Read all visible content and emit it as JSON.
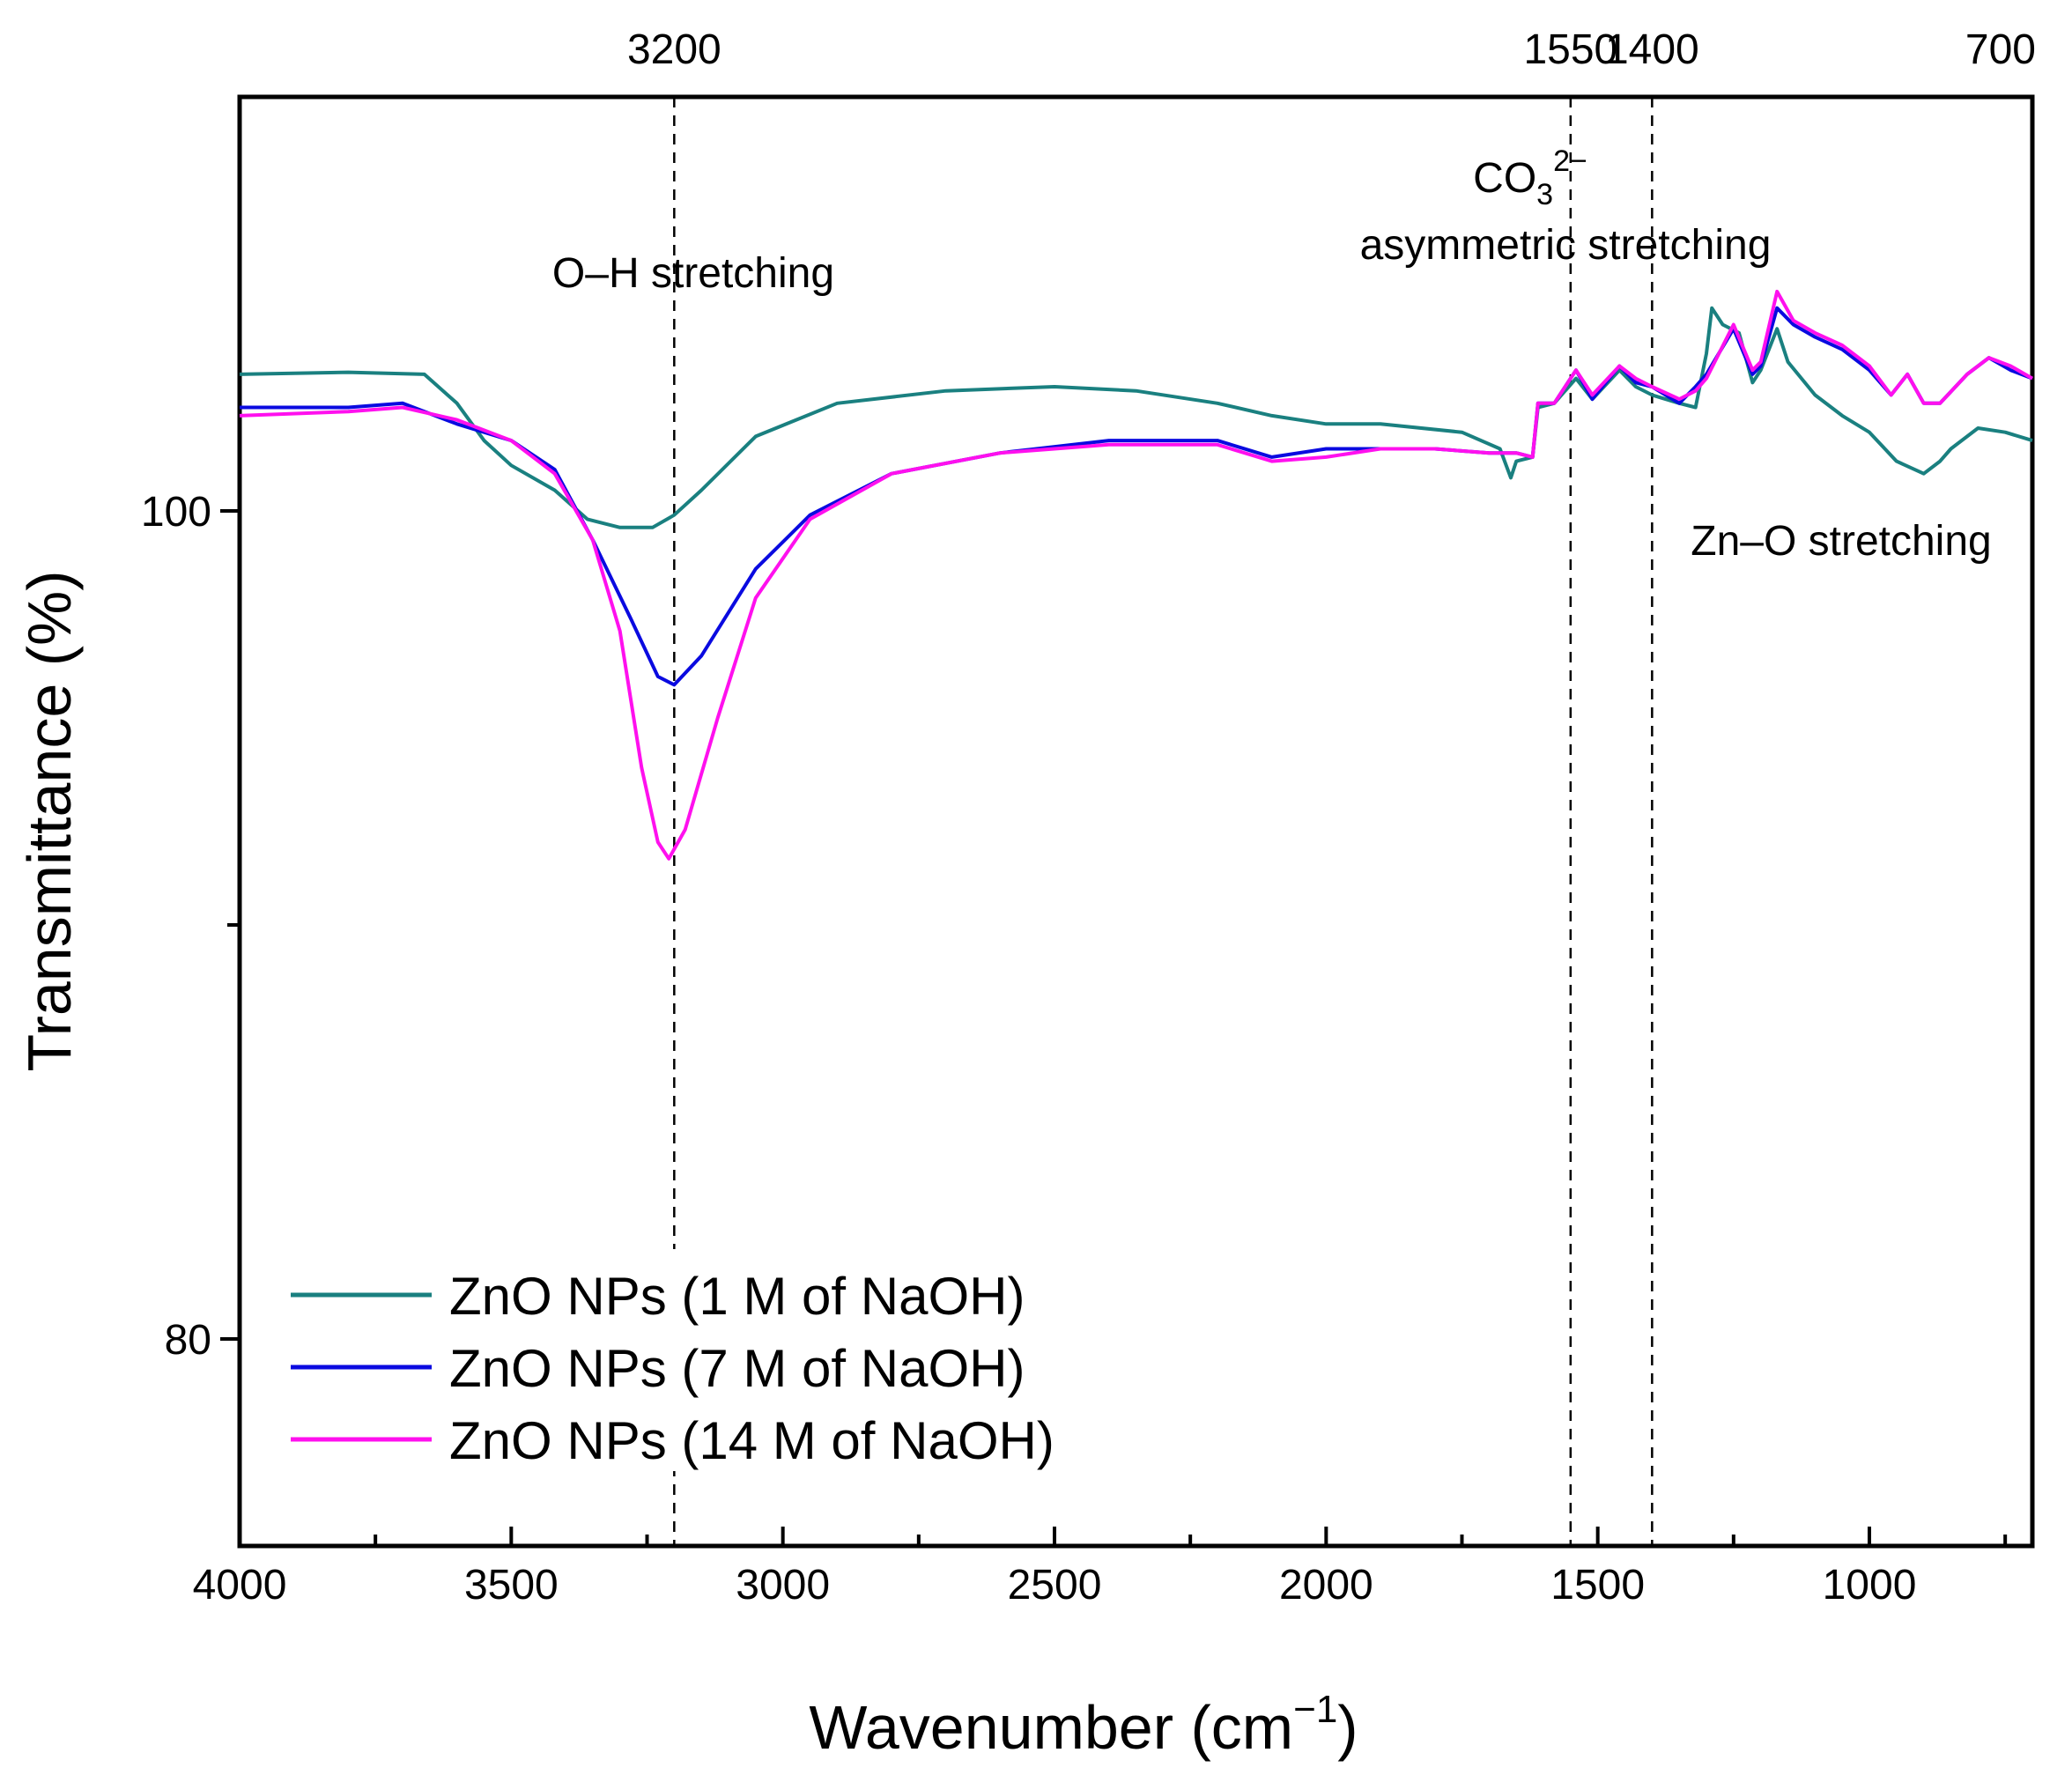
{
  "chart_data": {
    "type": "line",
    "title": "",
    "xlabel": "Wavenumber (cm",
    "xlabel_sup": "−1",
    "xlabel_end": ")",
    "ylabel": "Transmittance (%)",
    "xlim": [
      4000,
      700
    ],
    "ylim": [
      75,
      110
    ],
    "x_ticks": [
      4000,
      3500,
      3000,
      2500,
      2000,
      1500,
      1000
    ],
    "x_tick_labels": [
      "4000",
      "3500",
      "3000",
      "2500",
      "2000",
      "1500",
      "1000"
    ],
    "y_ticks": [
      80,
      100
    ],
    "y_tick_labels": [
      "80",
      "100"
    ],
    "reference_lines": [
      {
        "x": 3200,
        "label": "3200"
      },
      {
        "x": 1550,
        "label": "1550"
      },
      {
        "x": 1400,
        "label": "1400"
      },
      {
        "x": 700,
        "label": "700"
      }
    ],
    "annotations": [
      {
        "text": "O–H stretching"
      },
      {
        "text_line1_base": "CO",
        "text_line1_sub": "3",
        "text_line1_sup": "2−",
        "text_line2": "asymmetric stretching"
      },
      {
        "text": "Zn–O stretching"
      }
    ],
    "legend_position": "bottom-left",
    "series": [
      {
        "name": "ZnO NPs (1 M of NaOH)",
        "color": "#1a8080",
        "points": [
          [
            4000,
            103.3
          ],
          [
            3800,
            103.35
          ],
          [
            3660,
            103.3
          ],
          [
            3600,
            102.6
          ],
          [
            3550,
            101.7
          ],
          [
            3500,
            101.1
          ],
          [
            3420,
            100.5
          ],
          [
            3360,
            99.8
          ],
          [
            3300,
            99.6
          ],
          [
            3240,
            99.6
          ],
          [
            3200,
            99.9
          ],
          [
            3150,
            100.5
          ],
          [
            3050,
            101.8
          ],
          [
            2900,
            102.6
          ],
          [
            2700,
            102.9
          ],
          [
            2500,
            103.0
          ],
          [
            2350,
            102.9
          ],
          [
            2200,
            102.6
          ],
          [
            2100,
            102.3
          ],
          [
            2000,
            102.1
          ],
          [
            1900,
            102.1
          ],
          [
            1750,
            101.9
          ],
          [
            1680,
            101.5
          ],
          [
            1660,
            100.8
          ],
          [
            1650,
            101.2
          ],
          [
            1620,
            101.3
          ],
          [
            1610,
            102.5
          ],
          [
            1580,
            102.6
          ],
          [
            1540,
            103.2
          ],
          [
            1510,
            102.7
          ],
          [
            1460,
            103.4
          ],
          [
            1430,
            103.0
          ],
          [
            1400,
            102.8
          ],
          [
            1350,
            102.6
          ],
          [
            1320,
            102.5
          ],
          [
            1300,
            103.8
          ],
          [
            1290,
            104.9
          ],
          [
            1270,
            104.5
          ],
          [
            1240,
            104.3
          ],
          [
            1215,
            103.1
          ],
          [
            1200,
            103.4
          ],
          [
            1170,
            104.4
          ],
          [
            1150,
            103.6
          ],
          [
            1100,
            102.8
          ],
          [
            1050,
            102.3
          ],
          [
            1000,
            101.9
          ],
          [
            950,
            101.2
          ],
          [
            900,
            100.9
          ],
          [
            870,
            101.2
          ],
          [
            850,
            101.5
          ],
          [
            800,
            102.0
          ],
          [
            750,
            101.9
          ],
          [
            700,
            101.7
          ]
        ]
      },
      {
        "name": "ZnO NPs (7 M of NaOH)",
        "color": "#0a0ae0",
        "points": [
          [
            4000,
            102.5
          ],
          [
            3800,
            102.5
          ],
          [
            3700,
            102.6
          ],
          [
            3600,
            102.1
          ],
          [
            3500,
            101.7
          ],
          [
            3420,
            101.0
          ],
          [
            3350,
            99.3
          ],
          [
            3280,
            97.4
          ],
          [
            3230,
            96.0
          ],
          [
            3200,
            95.8
          ],
          [
            3150,
            96.5
          ],
          [
            3050,
            98.6
          ],
          [
            2950,
            99.9
          ],
          [
            2800,
            100.9
          ],
          [
            2600,
            101.4
          ],
          [
            2400,
            101.7
          ],
          [
            2200,
            101.7
          ],
          [
            2100,
            101.3
          ],
          [
            2000,
            101.5
          ],
          [
            1900,
            101.5
          ],
          [
            1800,
            101.5
          ],
          [
            1700,
            101.4
          ],
          [
            1650,
            101.4
          ],
          [
            1620,
            101.3
          ],
          [
            1610,
            102.6
          ],
          [
            1580,
            102.6
          ],
          [
            1540,
            103.4
          ],
          [
            1510,
            102.7
          ],
          [
            1460,
            103.5
          ],
          [
            1430,
            103.1
          ],
          [
            1400,
            103.0
          ],
          [
            1350,
            102.6
          ],
          [
            1320,
            103.0
          ],
          [
            1300,
            103.3
          ],
          [
            1250,
            104.4
          ],
          [
            1215,
            103.3
          ],
          [
            1200,
            103.5
          ],
          [
            1170,
            104.9
          ],
          [
            1140,
            104.5
          ],
          [
            1100,
            104.2
          ],
          [
            1050,
            103.9
          ],
          [
            1000,
            103.4
          ],
          [
            960,
            102.8
          ],
          [
            930,
            103.3
          ],
          [
            900,
            102.6
          ],
          [
            870,
            102.6
          ],
          [
            820,
            103.3
          ],
          [
            780,
            103.7
          ],
          [
            740,
            103.4
          ],
          [
            700,
            103.2
          ]
        ]
      },
      {
        "name": "ZnO NPs (14 M of NaOH)",
        "color": "#ff10ee",
        "points": [
          [
            4000,
            102.3
          ],
          [
            3800,
            102.4
          ],
          [
            3700,
            102.5
          ],
          [
            3600,
            102.2
          ],
          [
            3500,
            101.7
          ],
          [
            3420,
            100.9
          ],
          [
            3350,
            99.3
          ],
          [
            3300,
            97.1
          ],
          [
            3260,
            93.8
          ],
          [
            3230,
            92.0
          ],
          [
            3210,
            91.6
          ],
          [
            3180,
            92.3
          ],
          [
            3120,
            95.0
          ],
          [
            3050,
            97.9
          ],
          [
            2950,
            99.8
          ],
          [
            2800,
            100.9
          ],
          [
            2600,
            101.4
          ],
          [
            2400,
            101.6
          ],
          [
            2200,
            101.6
          ],
          [
            2100,
            101.2
          ],
          [
            2000,
            101.3
          ],
          [
            1900,
            101.5
          ],
          [
            1800,
            101.5
          ],
          [
            1700,
            101.4
          ],
          [
            1650,
            101.4
          ],
          [
            1620,
            101.3
          ],
          [
            1610,
            102.6
          ],
          [
            1580,
            102.6
          ],
          [
            1540,
            103.4
          ],
          [
            1510,
            102.8
          ],
          [
            1460,
            103.5
          ],
          [
            1430,
            103.2
          ],
          [
            1400,
            103.0
          ],
          [
            1350,
            102.7
          ],
          [
            1320,
            102.9
          ],
          [
            1300,
            103.2
          ],
          [
            1250,
            104.5
          ],
          [
            1215,
            103.4
          ],
          [
            1200,
            103.6
          ],
          [
            1170,
            105.3
          ],
          [
            1140,
            104.6
          ],
          [
            1100,
            104.3
          ],
          [
            1050,
            104.0
          ],
          [
            1000,
            103.5
          ],
          [
            960,
            102.8
          ],
          [
            930,
            103.3
          ],
          [
            900,
            102.6
          ],
          [
            870,
            102.6
          ],
          [
            820,
            103.3
          ],
          [
            780,
            103.7
          ],
          [
            740,
            103.5
          ],
          [
            700,
            103.2
          ]
        ]
      }
    ]
  }
}
